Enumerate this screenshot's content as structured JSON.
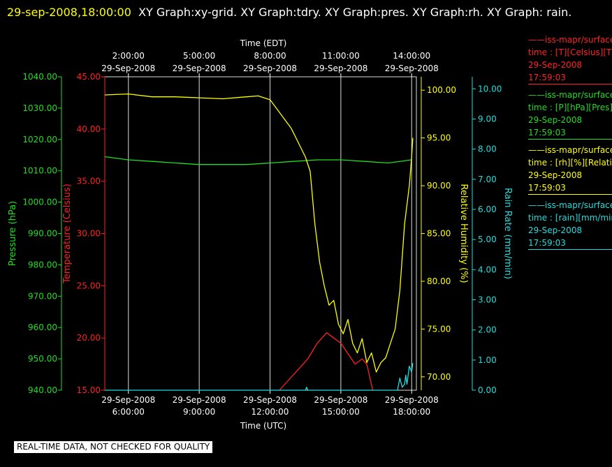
{
  "header": {
    "timestamp": "29-sep-2008,18:00:00",
    "graphs": "XY Graph:xy-grid.  XY Graph:tdry.  XY Graph:pres.  XY Graph:rh.  XY Graph: rain."
  },
  "colors": {
    "temperature": "#ff2222",
    "pressure": "#22dd22",
    "humidity": "#ffff00",
    "rain": "#22dddd",
    "grid": "#dddddd"
  },
  "chart_data": {
    "type": "line",
    "x_axis_top": {
      "label": "Time (EDT)",
      "ticks": [
        {
          "time": "2:00:00",
          "date": "29-Sep-2008"
        },
        {
          "time": "5:00:00",
          "date": "29-Sep-2008"
        },
        {
          "time": "8:00:00",
          "date": "29-Sep-2008"
        },
        {
          "time": "11:00:00",
          "date": "29-Sep-2008"
        },
        {
          "time": "14:00:00",
          "date": "29-Sep-2008"
        }
      ]
    },
    "x_axis_bottom": {
      "label": "Time (UTC)",
      "ticks": [
        {
          "date": "29-Sep-2008",
          "time": "6:00:00"
        },
        {
          "date": "29-Sep-2008",
          "time": "9:00:00"
        },
        {
          "date": "29-Sep-2008",
          "time": "12:00:00"
        },
        {
          "date": "29-Sep-2008",
          "time": "15:00:00"
        },
        {
          "date": "29-Sep-2008",
          "time": "18:00:00"
        }
      ]
    },
    "x_tick_hours_utc": [
      6,
      9,
      12,
      15,
      18
    ],
    "xlim_hours_utc": [
      5.0,
      18.2
    ],
    "y_axes": [
      {
        "id": "pressure",
        "label": "Pressure (hPa)",
        "range": [
          940,
          1040
        ],
        "ticks": [
          "940.00",
          "950.00",
          "960.00",
          "970.00",
          "980.00",
          "990.00",
          "1000.00",
          "1010.00",
          "1020.00",
          "1030.00",
          "1040.00"
        ]
      },
      {
        "id": "temperature",
        "label": "Temperature (Celsius)",
        "range": [
          15,
          45
        ],
        "ticks": [
          "15.00",
          "20.00",
          "25.00",
          "30.00",
          "35.00",
          "40.00",
          "45.00"
        ]
      },
      {
        "id": "humidity",
        "label": "Relative Humidity (%)",
        "range": [
          68.6,
          101.4
        ],
        "ticks": [
          "70.00",
          "75.00",
          "80.00",
          "85.00",
          "90.00",
          "95.00",
          "100.00"
        ]
      },
      {
        "id": "rain",
        "label": "Rain Rate (mm/min)",
        "range": [
          0,
          10.4
        ],
        "ticks": [
          "0.00",
          "1.00",
          "2.00",
          "3.00",
          "4.00",
          "5.00",
          "6.00",
          "7.00",
          "8.00",
          "9.00",
          "10.00"
        ]
      }
    ],
    "series": [
      {
        "axis": "pressure",
        "x": [
          5.0,
          6.0,
          7.0,
          8.0,
          9.0,
          10.0,
          11.0,
          12.0,
          13.0,
          14.0,
          15.0,
          16.0,
          17.0,
          18.0
        ],
        "y": [
          1014.5,
          1013.5,
          1013.0,
          1012.5,
          1012.0,
          1012.0,
          1012.0,
          1012.5,
          1013.0,
          1013.5,
          1013.5,
          1013.0,
          1012.5,
          1013.5
        ]
      },
      {
        "axis": "temperature",
        "x": [
          12.4,
          12.8,
          13.2,
          13.6,
          14.0,
          14.2,
          14.4,
          14.7,
          15.0,
          15.3,
          15.6,
          15.9,
          16.1,
          16.2,
          16.35
        ],
        "y": [
          15.0,
          16.0,
          17.0,
          18.0,
          19.5,
          20.0,
          20.5,
          20.0,
          19.5,
          18.5,
          17.5,
          18.0,
          17.5,
          16.5,
          15.0
        ]
      },
      {
        "axis": "humidity",
        "x": [
          5.0,
          6.0,
          7.0,
          8.0,
          9.0,
          10.0,
          11.0,
          11.5,
          12.0,
          12.3,
          12.6,
          12.9,
          13.2,
          13.5,
          13.7,
          13.9,
          14.1,
          14.3,
          14.5,
          14.7,
          14.9,
          15.1,
          15.3,
          15.5,
          15.7,
          15.9,
          16.1,
          16.3,
          16.5,
          16.7,
          16.9,
          17.1,
          17.3,
          17.5,
          17.7,
          17.9,
          18.0,
          18.05
        ],
        "y": [
          99.5,
          99.6,
          99.3,
          99.3,
          99.2,
          99.1,
          99.3,
          99.4,
          99.0,
          98.0,
          97.0,
          96.0,
          94.5,
          93.0,
          91.5,
          86.0,
          82.0,
          79.5,
          77.5,
          78.0,
          75.5,
          74.5,
          76.0,
          73.5,
          72.5,
          74.0,
          71.5,
          72.5,
          70.5,
          71.5,
          72.0,
          73.5,
          75.0,
          79.0,
          86.0,
          90.0,
          93.0,
          95.0
        ]
      },
      {
        "axis": "rain",
        "x": [
          5.0,
          13.5,
          13.55,
          13.6,
          17.4,
          17.5,
          17.6,
          17.7,
          17.75,
          17.8,
          17.9,
          18.0,
          18.05
        ],
        "y": [
          0.0,
          0.0,
          0.1,
          0.0,
          0.0,
          0.4,
          0.1,
          0.2,
          0.5,
          0.2,
          0.8,
          0.6,
          0.9
        ]
      }
    ]
  },
  "legend": [
    {
      "name": "——iss-mapr/surface",
      "field": "time : [T][Celsius][Tdry]",
      "date": "29-Sep-2008",
      "time": "17:59:03"
    },
    {
      "name": "——iss-mapr/surface",
      "field": "time : [P][hPa][Pres]",
      "date": "29-Sep-2008",
      "time": "17:59:03"
    },
    {
      "name": "——iss-mapr/surface",
      "field": "time : [rh][%][Relative]",
      "date": "29-Sep-2008",
      "time": "17:59:03"
    },
    {
      "name": "——iss-mapr/surface",
      "field": "time : [rain][mm/min]",
      "date": "29-Sep-2008",
      "time": "17:59:03"
    }
  ],
  "footer": "REAL-TIME DATA, NOT CHECKED FOR QUALITY"
}
